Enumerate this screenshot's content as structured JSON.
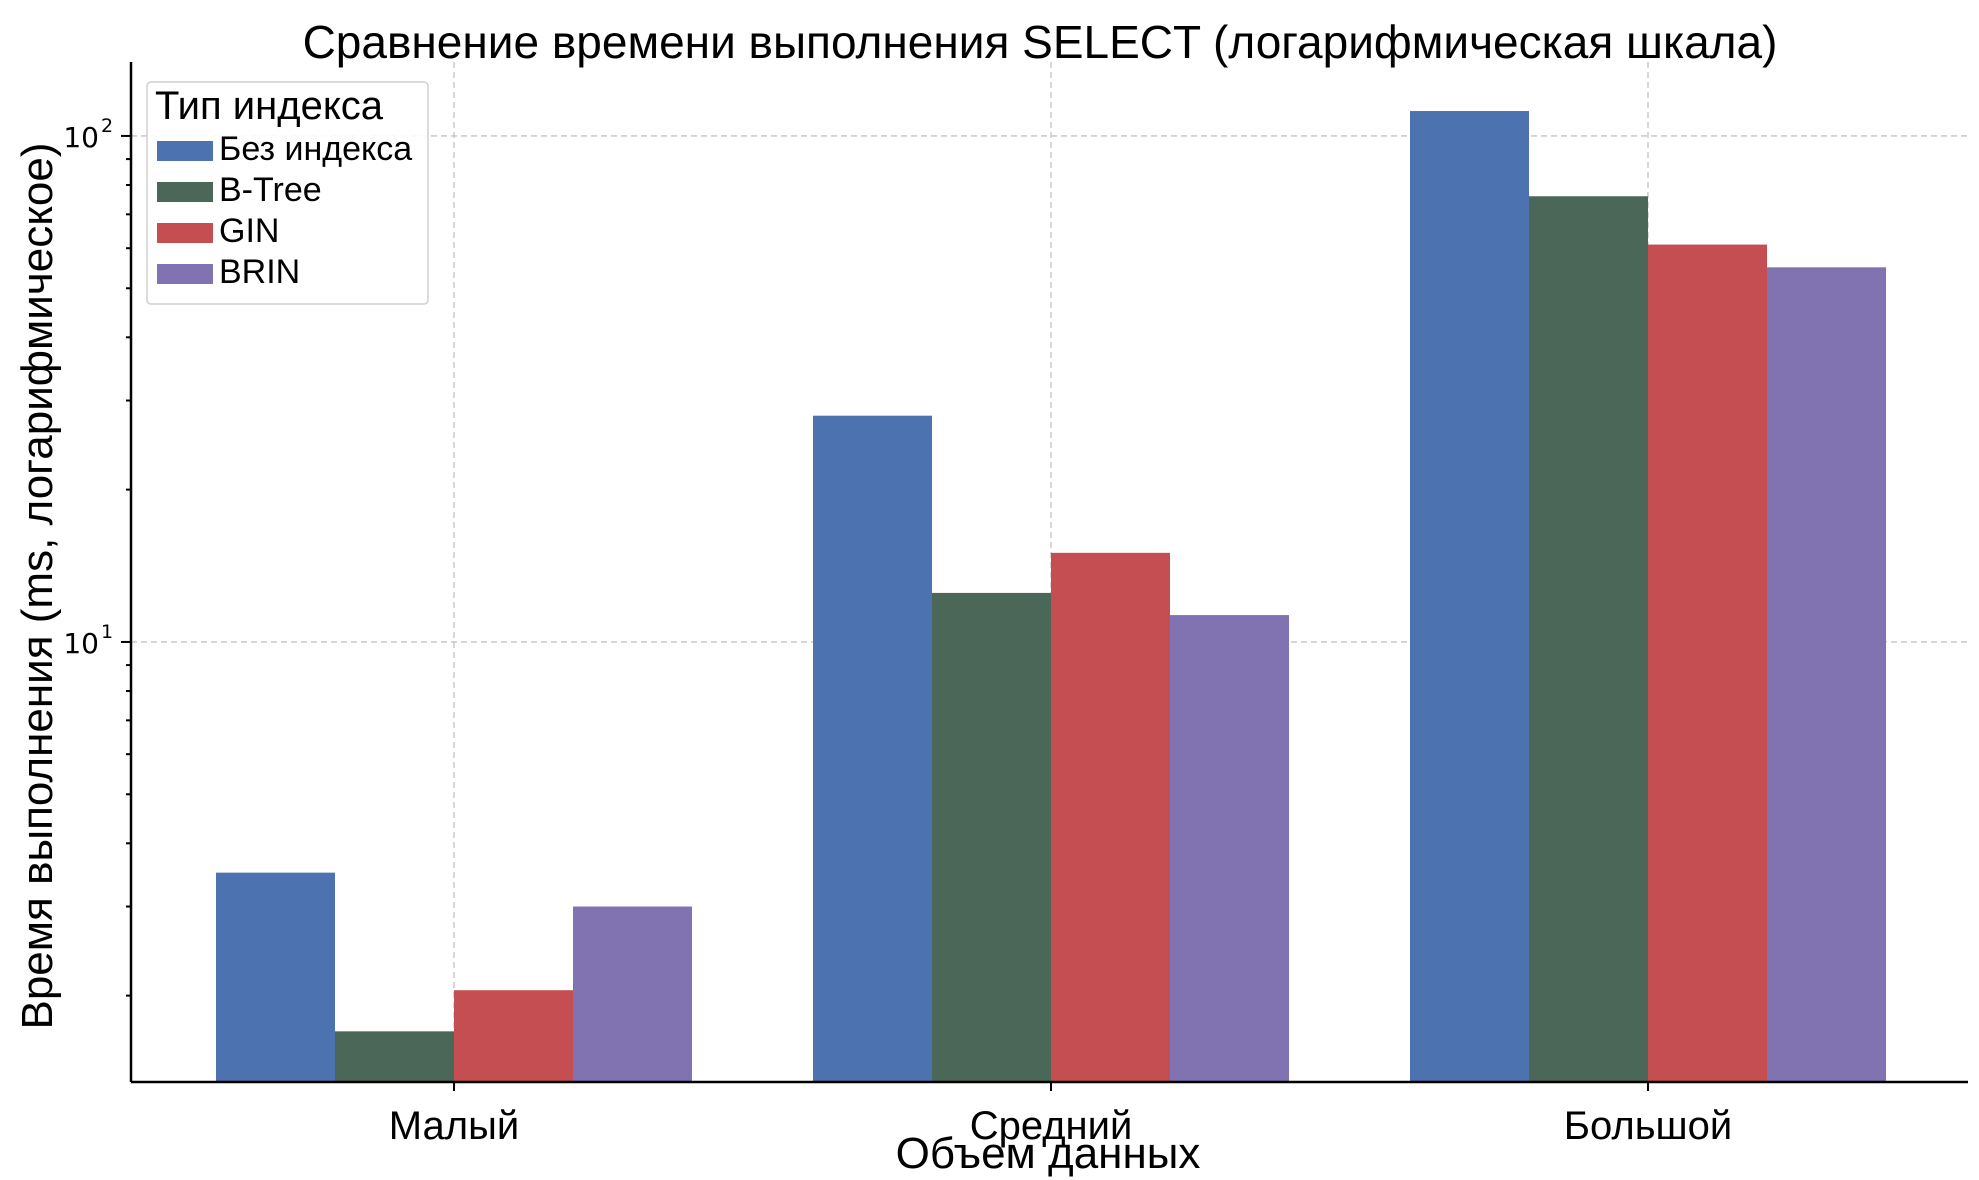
{
  "chart_data": {
    "type": "bar",
    "title": "Сравнение времени выполнения SELECT (логарифмическая шкала)",
    "xlabel": "Объем данных",
    "ylabel": "Время выполнения (ms, логарифмическое)",
    "yscale": "log",
    "ylim": [
      1.35,
      140
    ],
    "yticks": [
      {
        "value": 10,
        "base": "10",
        "exp": "1"
      },
      {
        "value": 100,
        "base": "10",
        "exp": "2"
      }
    ],
    "grid": true,
    "legend": {
      "title": "Тип индекса",
      "position": "top-left"
    },
    "categories": [
      "Малый",
      "Средний",
      "Большой"
    ],
    "series": [
      {
        "name": "Без индекса",
        "color": "#4c72b0",
        "values": [
          3.5,
          28,
          112
        ]
      },
      {
        "name": "B-Tree",
        "color": "#4a6758",
        "values": [
          1.7,
          12.5,
          76
        ]
      },
      {
        "name": "GIN",
        "color": "#c44e52",
        "values": [
          2.05,
          15,
          61
        ]
      },
      {
        "name": "BRIN",
        "color": "#8172b2",
        "values": [
          3,
          11.3,
          55
        ]
      }
    ]
  }
}
